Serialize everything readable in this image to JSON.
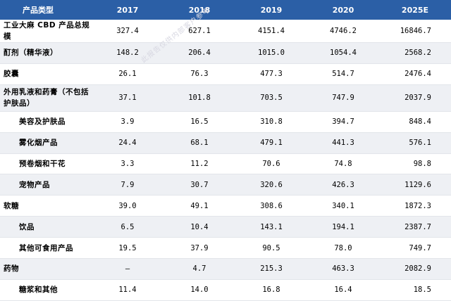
{
  "table": {
    "header": {
      "label": "产品类型",
      "years": [
        "2017",
        "2018",
        "2019",
        "2020",
        "2025E"
      ]
    },
    "rows": [
      {
        "label": "工业大麻 CBD 产品总规模",
        "values": [
          "327.4",
          "627.1",
          "4151.4",
          "4746.2",
          "16846.7"
        ]
      },
      {
        "label": "酊剂（精华液）",
        "values": [
          "148.2",
          "206.4",
          "1015.0",
          "1054.4",
          "2568.2"
        ]
      },
      {
        "label": "胶囊",
        "values": [
          "26.1",
          "76.3",
          "477.3",
          "514.7",
          "2476.4"
        ]
      },
      {
        "label": "外用乳液和药膏（不包括护肤品）",
        "values": [
          "37.1",
          "101.8",
          "703.5",
          "747.9",
          "2037.9"
        ]
      },
      {
        "label": "美容及护肤品",
        "values": [
          "3.9",
          "16.5",
          "310.8",
          "394.7",
          "848.4"
        ]
      },
      {
        "label": "雾化烟产品",
        "values": [
          "24.4",
          "68.1",
          "479.1",
          "441.3",
          "576.1"
        ]
      },
      {
        "label": "预卷烟和干花",
        "values": [
          "3.3",
          "11.2",
          "70.6",
          "74.8",
          "98.8"
        ]
      },
      {
        "label": "宠物产品",
        "values": [
          "7.9",
          "30.7",
          "320.6",
          "426.3",
          "1129.6"
        ]
      },
      {
        "label": "软糖",
        "values": [
          "39.0",
          "49.1",
          "308.6",
          "340.1",
          "1872.3"
        ]
      },
      {
        "label": "饮品",
        "values": [
          "6.5",
          "10.4",
          "143.1",
          "194.1",
          "2387.7"
        ]
      },
      {
        "label": "其他可食用产品",
        "values": [
          "19.5",
          "37.9",
          "90.5",
          "78.0",
          "749.7"
        ]
      },
      {
        "label": "药物",
        "values": [
          "–",
          "4.7",
          "215.3",
          "463.3",
          "2082.9"
        ]
      },
      {
        "label": "糖浆和其他",
        "values": [
          "11.4",
          "14.0",
          "16.8",
          "16.4",
          "18.5"
        ]
      }
    ]
  },
  "watermark": "此报告仅供内部客户参考"
}
